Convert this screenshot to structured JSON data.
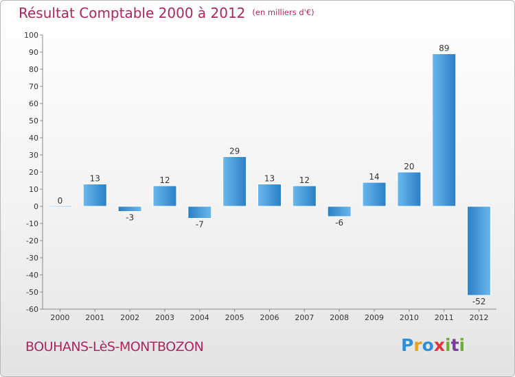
{
  "header": {
    "title": "Résultat Comptable 2000 à 2012",
    "unit": "(en milliers d'€)"
  },
  "footer": {
    "commune": "BOUHANS-LèS-MONTBOZON",
    "logo": {
      "letters": [
        "P",
        "r",
        "o",
        "x",
        "i",
        "t",
        "i"
      ]
    }
  },
  "colors": {
    "title": "#a8285e",
    "bar_light": "#5eb0ea",
    "bar_dark": "#2a7fc4"
  },
  "chart_data": {
    "type": "bar",
    "title": "Résultat Comptable 2000 à 2012",
    "subtitle": "(en milliers d'€)",
    "xlabel": "",
    "ylabel": "",
    "categories": [
      "2000",
      "2001",
      "2002",
      "2003",
      "2004",
      "2005",
      "2006",
      "2007",
      "2008",
      "2009",
      "2010",
      "2011",
      "2012"
    ],
    "values": [
      0,
      13,
      -3,
      12,
      -7,
      29,
      13,
      12,
      -6,
      14,
      20,
      89,
      -52
    ],
    "data_labels": [
      "0",
      "13",
      "-3",
      "12",
      "-7",
      "29",
      "13",
      "12",
      "-6",
      "14",
      "20",
      "89",
      "-52"
    ],
    "ylim": [
      -60,
      100
    ],
    "yticks": [
      100,
      90,
      80,
      70,
      60,
      50,
      40,
      30,
      20,
      10,
      0,
      -10,
      -20,
      -30,
      -40,
      -50,
      -60
    ],
    "ytick_labels": [
      "100",
      "90",
      "80",
      "70",
      "60",
      "50",
      "40",
      "30",
      "20",
      "10",
      "0",
      "-10",
      "-20",
      "-30",
      "-40",
      "-50",
      "-60"
    ],
    "grid": false,
    "legend": "none"
  }
}
